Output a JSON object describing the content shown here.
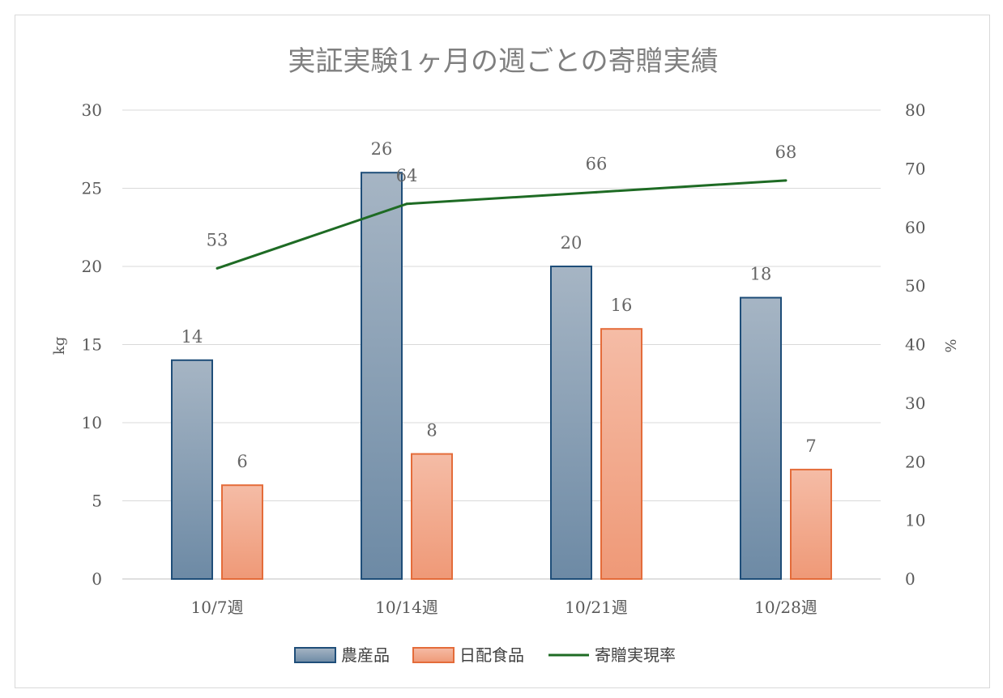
{
  "chart_data": {
    "type": "bar",
    "title": "実証実験1ヶ月の週ごとの寄贈実績",
    "categories": [
      "10/7週",
      "10/14週",
      "10/21週",
      "10/28週"
    ],
    "series": [
      {
        "name": "農産品",
        "type": "bar",
        "axis": "left",
        "values": [
          14,
          26,
          20,
          18
        ],
        "color": "#7d98b0",
        "stroke": "#1f4e79"
      },
      {
        "name": "日配食品",
        "type": "bar",
        "axis": "left",
        "values": [
          6,
          8,
          16,
          7
        ],
        "color": "#f2a98a",
        "stroke": "#e46c3a"
      },
      {
        "name": "寄贈実現率",
        "type": "line",
        "axis": "right",
        "values": [
          53,
          64,
          66,
          68
        ],
        "color": "#1e6b24"
      }
    ],
    "y_left": {
      "label": "kg",
      "range": [
        0,
        30
      ],
      "ticks": [
        "0",
        "5",
        "10",
        "15",
        "20",
        "25",
        "30"
      ]
    },
    "y_right": {
      "label": "%",
      "range": [
        0,
        80
      ],
      "ticks": [
        "0",
        "10",
        "20",
        "30",
        "40",
        "50",
        "60",
        "70",
        "80"
      ]
    },
    "grid": true,
    "legend_position": "bottom"
  }
}
